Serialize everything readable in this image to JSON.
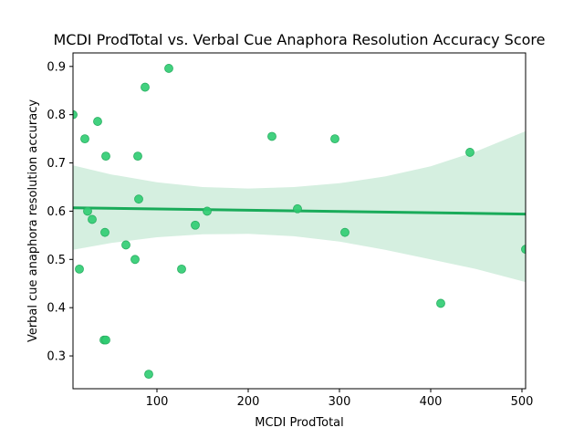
{
  "chart_data": {
    "type": "scatter",
    "title": "MCDI ProdTotal vs. Verbal Cue Anaphora Resolution Accuracy Score",
    "xlabel": "MCDI ProdTotal",
    "ylabel": "Verbal cue anaphora resolution accuracy",
    "xlim": [
      8,
      504
    ],
    "ylim": [
      0.232,
      0.928
    ],
    "x_ticks": [
      100,
      200,
      300,
      400,
      500
    ],
    "y_ticks": [
      0.3,
      0.4,
      0.5,
      0.6,
      0.7,
      0.8,
      0.9
    ],
    "grid": false,
    "legend": "none",
    "points": [
      {
        "x": 8,
        "y": 0.8
      },
      {
        "x": 15,
        "y": 0.48
      },
      {
        "x": 21,
        "y": 0.75
      },
      {
        "x": 24,
        "y": 0.6
      },
      {
        "x": 29,
        "y": 0.583
      },
      {
        "x": 35,
        "y": 0.786
      },
      {
        "x": 42,
        "y": 0.333
      },
      {
        "x": 43,
        "y": 0.556
      },
      {
        "x": 44,
        "y": 0.333
      },
      {
        "x": 44,
        "y": 0.714
      },
      {
        "x": 66,
        "y": 0.53
      },
      {
        "x": 76,
        "y": 0.5
      },
      {
        "x": 79,
        "y": 0.714
      },
      {
        "x": 80,
        "y": 0.625
      },
      {
        "x": 87,
        "y": 0.857
      },
      {
        "x": 91,
        "y": 0.262
      },
      {
        "x": 113,
        "y": 0.896
      },
      {
        "x": 127,
        "y": 0.48
      },
      {
        "x": 142,
        "y": 0.571
      },
      {
        "x": 155,
        "y": 0.6
      },
      {
        "x": 226,
        "y": 0.755
      },
      {
        "x": 254,
        "y": 0.605
      },
      {
        "x": 295,
        "y": 0.75
      },
      {
        "x": 306,
        "y": 0.556
      },
      {
        "x": 411,
        "y": 0.409
      },
      {
        "x": 443,
        "y": 0.722
      },
      {
        "x": 504,
        "y": 0.521
      }
    ],
    "regression": {
      "x": [
        8,
        504
      ],
      "y": [
        0.607,
        0.594
      ],
      "ci_upper": [
        {
          "x": 8,
          "y": 0.695
        },
        {
          "x": 50,
          "y": 0.676
        },
        {
          "x": 100,
          "y": 0.66
        },
        {
          "x": 150,
          "y": 0.65
        },
        {
          "x": 200,
          "y": 0.647
        },
        {
          "x": 250,
          "y": 0.65
        },
        {
          "x": 300,
          "y": 0.658
        },
        {
          "x": 350,
          "y": 0.672
        },
        {
          "x": 400,
          "y": 0.693
        },
        {
          "x": 450,
          "y": 0.724
        },
        {
          "x": 504,
          "y": 0.766
        }
      ],
      "ci_lower": [
        {
          "x": 8,
          "y": 0.52
        },
        {
          "x": 50,
          "y": 0.534
        },
        {
          "x": 100,
          "y": 0.546
        },
        {
          "x": 150,
          "y": 0.552
        },
        {
          "x": 200,
          "y": 0.553
        },
        {
          "x": 250,
          "y": 0.548
        },
        {
          "x": 300,
          "y": 0.537
        },
        {
          "x": 350,
          "y": 0.52
        },
        {
          "x": 400,
          "y": 0.5
        },
        {
          "x": 450,
          "y": 0.48
        },
        {
          "x": 504,
          "y": 0.453
        }
      ]
    },
    "colors": {
      "point_fill": "#2ecc71",
      "point_edge": "#27ae60",
      "line": "#1aab5a",
      "band": "#d5efe0"
    }
  }
}
